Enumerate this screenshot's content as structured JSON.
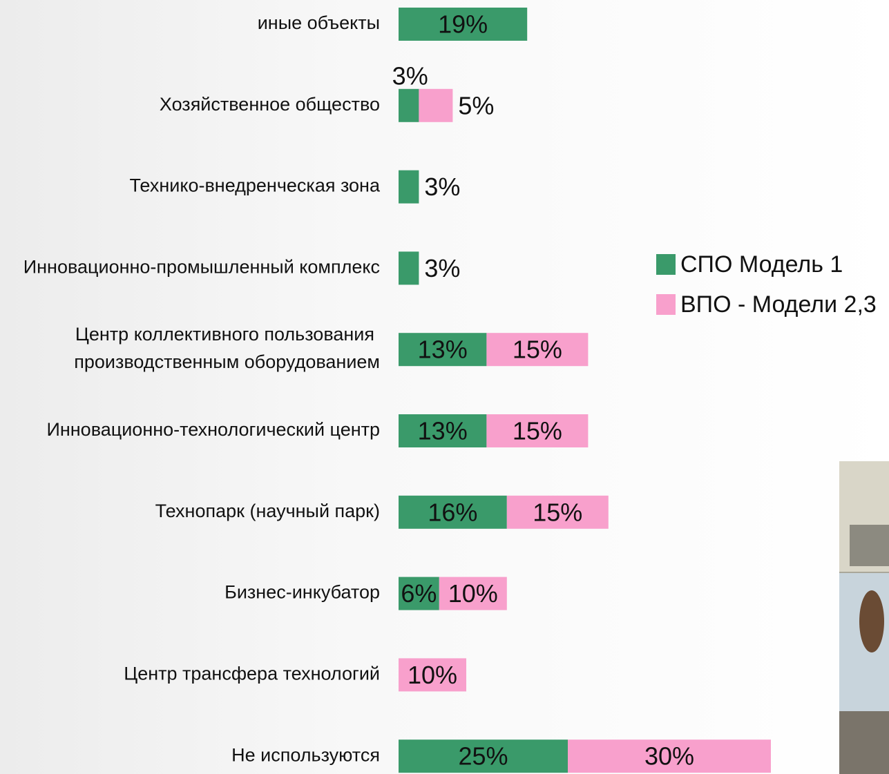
{
  "chart_data": {
    "type": "stacked-bar-horizontal",
    "categories": [
      "иные объекты",
      "Хозяйственное общество",
      "Технико-внедренческая зона",
      "Инновационно-промышленный комплекс",
      "Центр коллективного пользования\nпроизводственным оборудованием",
      "Инновационно-технологический центр",
      "Технопарк (научный парк)",
      "Бизнес-инкубатор",
      "Центр трансфера технологий",
      "Не используются"
    ],
    "series": [
      {
        "name": "СПО Модель 1",
        "color": "#3a9a6a",
        "values": [
          19,
          3,
          3,
          3,
          13,
          13,
          16,
          6,
          null,
          25
        ],
        "value_labels": [
          "19%",
          "3%",
          "3%",
          "3%",
          "13%",
          "13%",
          "16%",
          "6%",
          null,
          "25%"
        ]
      },
      {
        "name": "ВПО - Модели 2,3",
        "color": "#f8a0cc",
        "values": [
          null,
          5,
          null,
          null,
          15,
          15,
          15,
          10,
          10,
          30
        ],
        "value_labels": [
          null,
          "5%",
          null,
          null,
          "15%",
          "15%",
          "15%",
          "10%",
          "10%",
          "30%"
        ]
      }
    ],
    "legend": "right"
  }
}
